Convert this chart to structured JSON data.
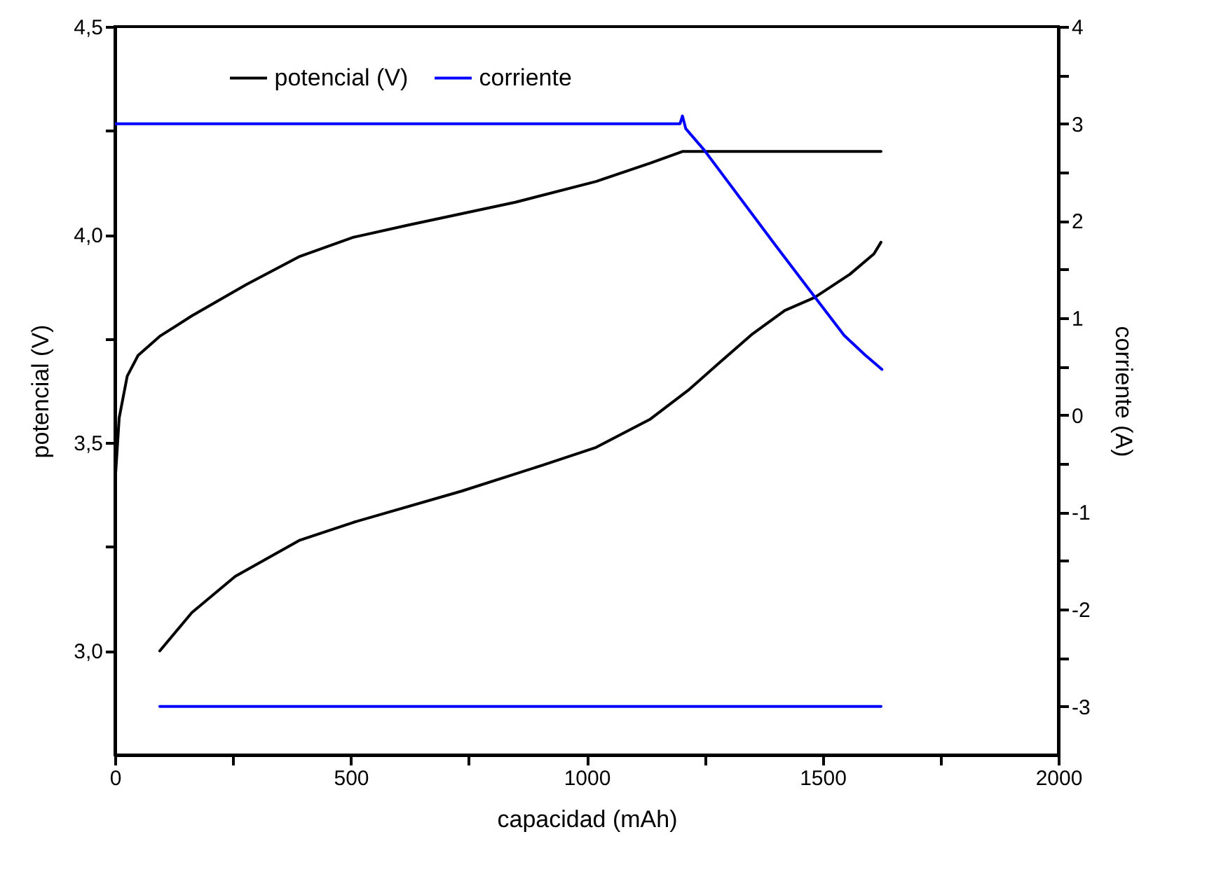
{
  "chart_data": {
    "type": "line",
    "xlabel": "capacidad (mAh)",
    "ylabel": "potencial (V)",
    "y2label": "corriente (A)",
    "legend": "top",
    "line_style": "solid",
    "xlim": [
      0,
      2000
    ],
    "xticks": [
      0,
      {
        "value": 250,
        "label": null
      },
      500,
      {
        "value": 750,
        "label": null
      },
      1000,
      {
        "value": 1250,
        "label": null
      },
      1500,
      {
        "value": 1750,
        "label": null
      },
      2000
    ],
    "ylim": [
      2.75,
      4.5
    ],
    "yticks": [
      {
        "value": 3,
        "label": "3,0"
      },
      {
        "value": 3.25,
        "label": null
      },
      {
        "value": 3.5,
        "label": "3,5"
      },
      {
        "value": 3.75,
        "label": null
      },
      {
        "value": 4,
        "label": "4,0"
      },
      {
        "value": 4.25,
        "label": null
      },
      {
        "value": 4.5,
        "label": "4,5"
      }
    ],
    "y2lim": [
      -3.5,
      4
    ],
    "y2ticks": [
      -3,
      {
        "value": -2.5,
        "label": null
      },
      -2,
      {
        "value": -1.5,
        "label": null
      },
      -1,
      {
        "value": -0.5,
        "label": null
      },
      0,
      {
        "value": 0.5,
        "label": null
      },
      1,
      {
        "value": 1.5,
        "label": null
      },
      2,
      {
        "value": 2.5,
        "label": null
      },
      3,
      {
        "value": 3.5,
        "label": null
      },
      4
    ],
    "series": [
      {
        "name": "potencial (V)",
        "color": "#000000",
        "x": [
          0,
          9,
          26,
          49,
          95,
          163,
          278,
          392,
          506,
          621,
          849,
          1020,
          1135,
          1203,
          1400,
          1624,
          null,
          95,
          163,
          255,
          392,
          506,
          735,
          906,
          1020,
          1135,
          1215,
          1283,
          1352,
          1420,
          1483,
          1558,
          1609,
          1624
        ],
        "values": [
          3.4,
          3.56,
          3.66,
          3.71,
          3.756,
          3.805,
          3.88,
          3.948,
          3.994,
          4.023,
          4.078,
          4.128,
          4.172,
          4.2,
          4.2,
          4.2,
          null,
          3.0,
          3.092,
          3.179,
          3.266,
          3.309,
          3.384,
          3.446,
          3.489,
          3.557,
          3.626,
          3.694,
          3.762,
          3.818,
          3.849,
          3.905,
          3.954,
          3.982
        ]
      },
      {
        "name": "corriente",
        "color": "#0000ff",
        "axis": "y2",
        "x": [
          0,
          1198,
          1203,
          1210,
          1249,
          1400,
          1483,
          1546,
          1590,
          1626,
          null,
          95,
          1624
        ],
        "values": [
          3.0,
          3.0,
          3.08,
          2.95,
          2.73,
          1.75,
          1.22,
          0.82,
          0.62,
          0.47,
          null,
          -3.0,
          -3.0
        ]
      }
    ]
  }
}
